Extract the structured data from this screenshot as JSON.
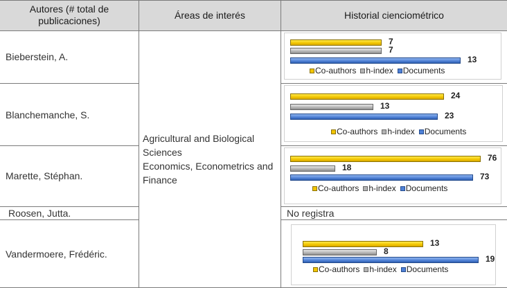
{
  "header": {
    "authors": "Autores (# total de publicaciones)",
    "areas": "Áreas de interés",
    "history": "Historial cienciométrico"
  },
  "areas_text": {
    "line1": "Agricultural and Biological Sciences",
    "line2": "Economics, Econometrics and Finance"
  },
  "legend": {
    "coauthors": "Co-authors",
    "hindex": "h-index",
    "documents": "Documents"
  },
  "colors": {
    "coauthors": "#f2c500",
    "hindex": "#b3b3b3",
    "documents": "#4f81d6"
  },
  "rows": [
    {
      "author": "Bieberstein, A."
    },
    {
      "author": "Blanchemanche, S."
    },
    {
      "author": "Marette, Stéphan."
    },
    {
      "author": "Roosen, Jutta.",
      "history": "No registra"
    },
    {
      "author": "Vandermoere, Frédéric."
    }
  ],
  "chart_data": [
    {
      "type": "bar",
      "author": "Bieberstein, A.",
      "categories": [
        "Co-authors",
        "h-index",
        "Documents"
      ],
      "values": [
        7,
        7,
        13
      ]
    },
    {
      "type": "bar",
      "author": "Blanchemanche, S.",
      "categories": [
        "Co-authors",
        "h-index",
        "Documents"
      ],
      "values": [
        24,
        13,
        23
      ]
    },
    {
      "type": "bar",
      "author": "Marette, Stéphan.",
      "categories": [
        "Co-authors",
        "h-index",
        "Documents"
      ],
      "values": [
        76,
        18,
        73
      ]
    },
    {
      "type": "bar",
      "author": "Vandermoere, Frédéric.",
      "categories": [
        "Co-authors",
        "h-index",
        "Documents"
      ],
      "values": [
        13,
        8,
        19
      ]
    }
  ]
}
